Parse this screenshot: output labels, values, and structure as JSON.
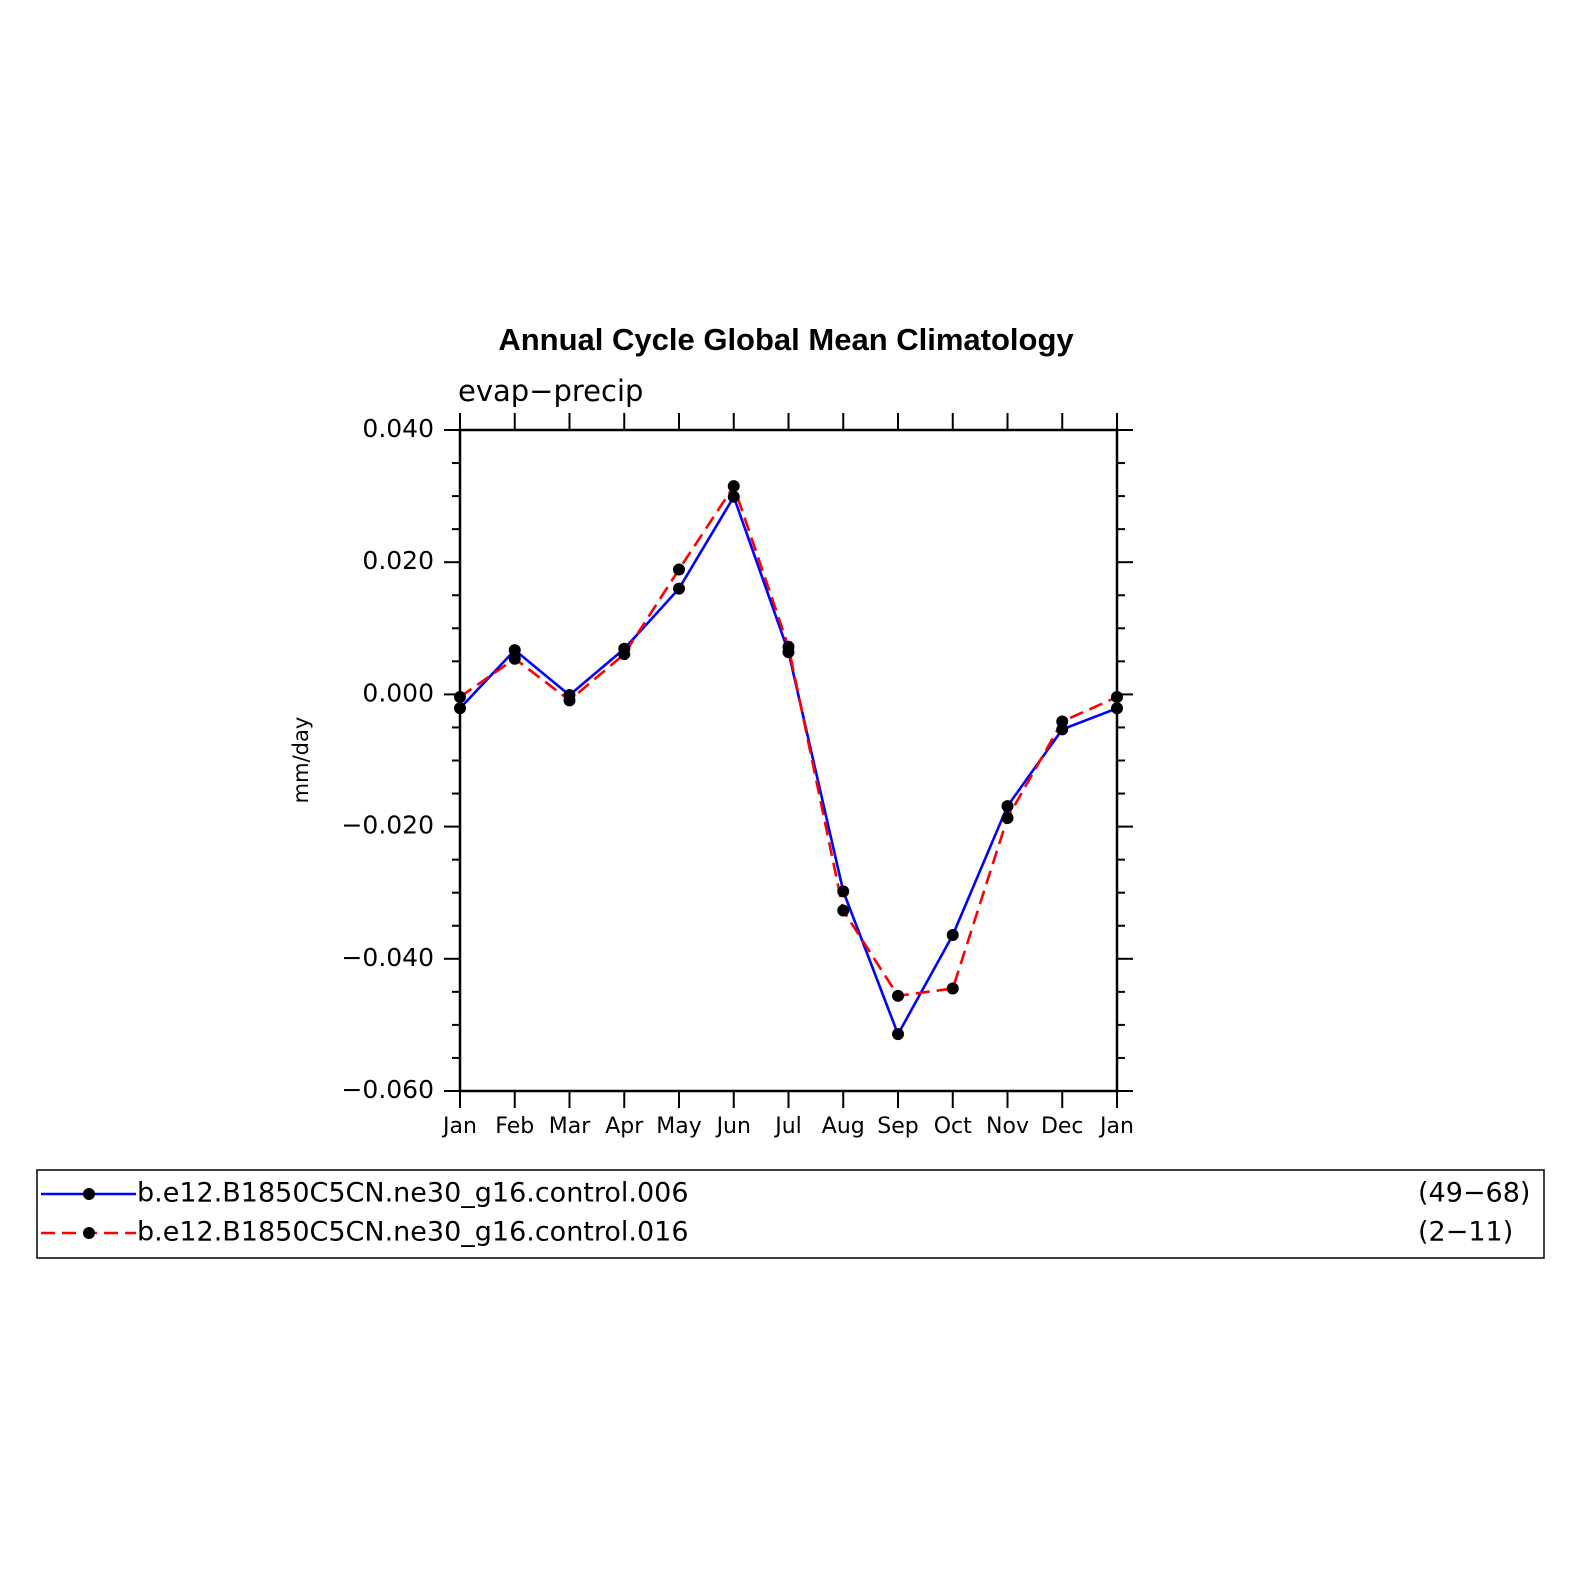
{
  "chart_data": {
    "type": "line",
    "title": "Annual Cycle Global Mean Climatology",
    "subtitle": "evap−precip",
    "xlabel": "",
    "ylabel": "mm/day",
    "categories": [
      "Jan",
      "Feb",
      "Mar",
      "Apr",
      "May",
      "Jun",
      "Jul",
      "Aug",
      "Sep",
      "Oct",
      "Nov",
      "Dec",
      "Jan"
    ],
    "yticks": [
      "0.040",
      "0.020",
      "0.000",
      "−0.020",
      "−0.040",
      "−0.060"
    ],
    "ytick_values": [
      0.04,
      0.02,
      0.0,
      -0.02,
      -0.04,
      -0.06
    ],
    "ylim": [
      -0.06,
      0.04
    ],
    "grid": false,
    "legend_placement": "bottom",
    "series": [
      {
        "name": "b.e12.B1850C5CN.ne30_g16.control.006",
        "years": "(49−68)",
        "color": "#0000ff",
        "dash": "solid",
        "marker_color": "#000000",
        "values": [
          -0.0021,
          0.0067,
          -0.0001,
          0.0069,
          0.016,
          0.0299,
          0.0064,
          -0.0298,
          -0.0514,
          -0.0364,
          -0.0169,
          -0.0053,
          -0.0021
        ]
      },
      {
        "name": "b.e12.B1850C5CN.ne30_g16.control.016",
        "years": "(2−11)",
        "color": "#ff0000",
        "dash": "dashed",
        "marker_color": "#000000",
        "values": [
          -0.0004,
          0.0054,
          -0.0009,
          0.0061,
          0.0189,
          0.0315,
          0.0072,
          -0.0327,
          -0.0456,
          -0.0445,
          -0.0187,
          -0.0041,
          -0.0004
        ]
      }
    ]
  }
}
